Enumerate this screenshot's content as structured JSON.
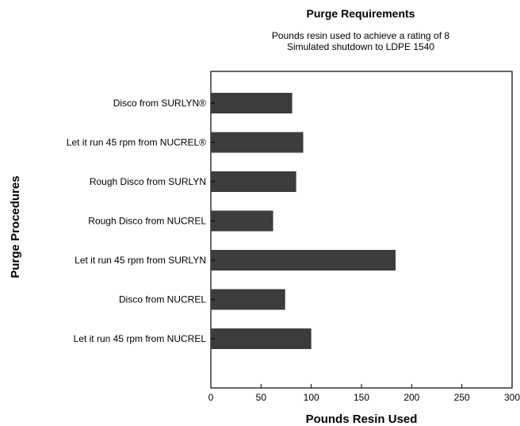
{
  "chart_data": {
    "type": "bar",
    "orientation": "horizontal",
    "title": "Purge Requirements",
    "subtitle_line1": "Pounds resin used to achieve a rating of 8",
    "subtitle_line2": "Simulated shutdown to LDPE 1540",
    "xlabel": "Pounds Resin Used",
    "ylabel": "Purge Procedures",
    "xlim": [
      0,
      300
    ],
    "xticks": [
      "0",
      "50",
      "100",
      "150",
      "200",
      "250",
      "300"
    ],
    "categories": [
      "Disco from SURLYN®",
      "Let it run 45 rpm from NUCREL®",
      "Rough Disco from SURLYN",
      "Rough Disco from NUCREL",
      "Let it run 45 rpm from SURLYN",
      "Disco from NUCREL",
      "Let it run 45 rpm from NUCREL"
    ],
    "values": [
      81,
      92,
      85,
      62,
      184,
      74,
      100
    ],
    "bar_color": "#3c3c3c",
    "grid": false
  }
}
